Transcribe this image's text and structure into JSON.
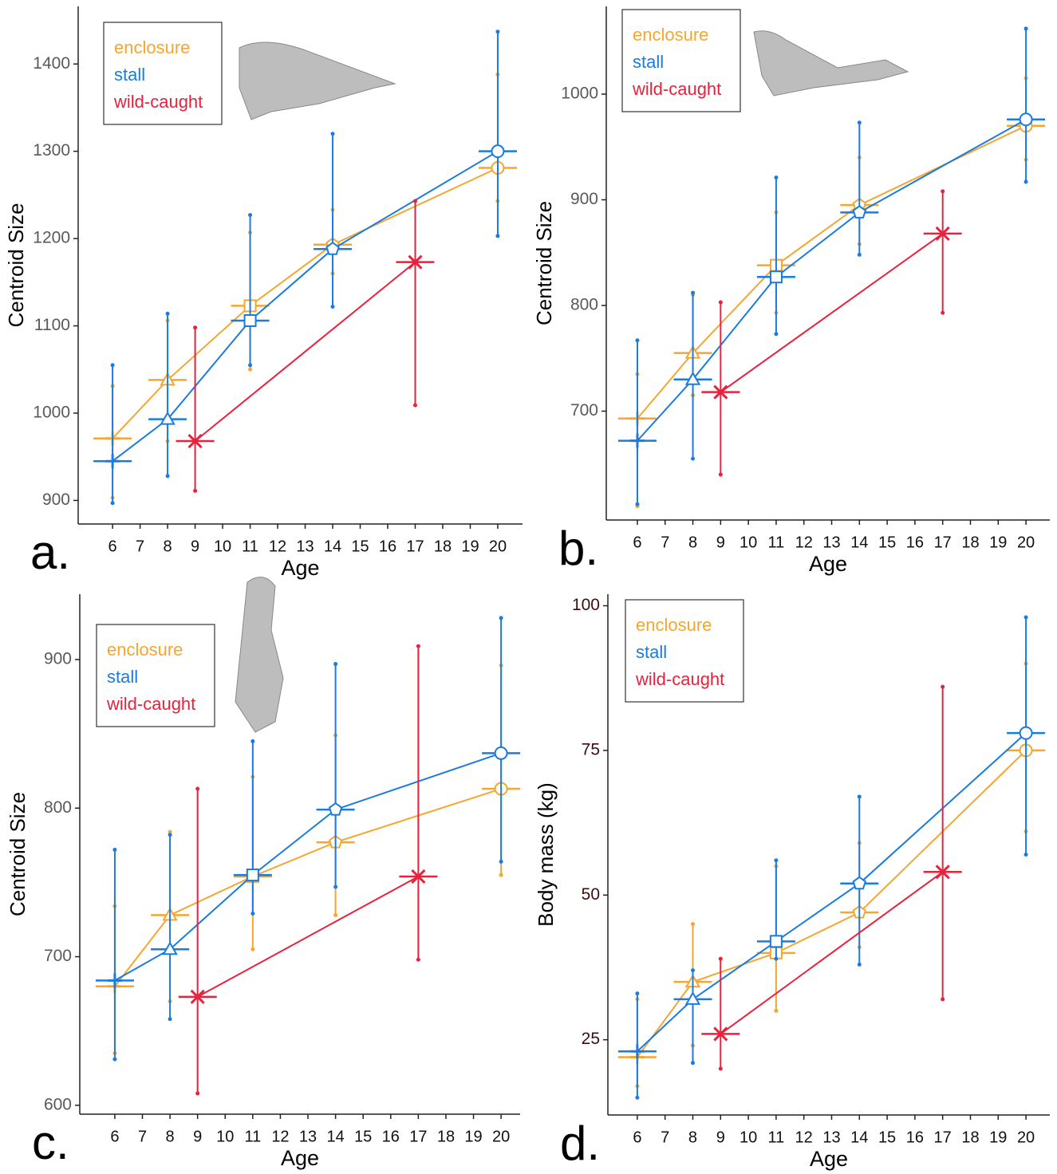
{
  "chart_data": [
    {
      "type": "line",
      "panel_label": "a.",
      "x_label": "Age",
      "y_label": "Centroid Size",
      "ytick_color": "#595959",
      "xlim": [
        4.75,
        20.9
      ],
      "ylim": [
        873,
        1466
      ],
      "xticks": [
        6,
        7,
        8,
        9,
        10,
        11,
        12,
        13,
        14,
        15,
        16,
        17,
        18,
        19,
        20
      ],
      "yticks": [
        900,
        1000,
        1100,
        1200,
        1300,
        1400
      ],
      "series": [
        {
          "name": "enclosure",
          "color": "#f5a631",
          "x": [
            6,
            8,
            11,
            14,
            20
          ],
          "values": [
            971,
            1038,
            1123,
            1193,
            1281
          ],
          "low": [
            903,
            968,
            1050,
            1160,
            1243
          ],
          "high": [
            1031,
            1106,
            1207,
            1233,
            1388
          ],
          "markers": [
            "plus",
            "triangle",
            "square",
            "pentagon",
            "circle"
          ]
        },
        {
          "name": "stall",
          "color": "#1a7be0",
          "x": [
            6,
            8,
            11,
            14,
            20
          ],
          "values": [
            945,
            993,
            1106,
            1188,
            1300
          ],
          "low": [
            897,
            928,
            1055,
            1122,
            1203
          ],
          "high": [
            1055,
            1114,
            1227,
            1320,
            1437
          ],
          "markers": [
            "plus",
            "triangle",
            "square",
            "pentagon",
            "circle"
          ]
        },
        {
          "name": "wild-caught",
          "color": "#e8213c",
          "x": [
            9,
            17
          ],
          "values": [
            968,
            1173
          ],
          "low": [
            911,
            1009
          ],
          "high": [
            1098,
            1243
          ],
          "markers": [
            "x",
            "x"
          ]
        }
      ]
    },
    {
      "type": "line",
      "panel_label": "b.",
      "x_label": "Age",
      "y_label": "Centroid Size",
      "ytick_color": "#595959",
      "xlim": [
        4.88,
        20.86
      ],
      "ylim": [
        597,
        1083
      ],
      "xticks": [
        6,
        7,
        8,
        9,
        10,
        11,
        12,
        13,
        14,
        15,
        16,
        17,
        18,
        19,
        20
      ],
      "yticks": [
        700,
        800,
        900,
        1000
      ],
      "series": [
        {
          "name": "enclosure",
          "color": "#f5a631",
          "x": [
            6,
            8,
            11,
            14,
            20
          ],
          "values": [
            693,
            755,
            838,
            895,
            970
          ],
          "low": [
            610,
            715,
            793,
            858,
            938
          ],
          "high": [
            735,
            810,
            888,
            940,
            1015
          ],
          "markers": [
            "plus",
            "triangle",
            "square",
            "pentagon",
            "circle"
          ]
        },
        {
          "name": "stall",
          "color": "#1a7be0",
          "x": [
            6,
            8,
            11,
            14,
            20
          ],
          "values": [
            672,
            730,
            827,
            888,
            976
          ],
          "low": [
            612,
            655,
            773,
            848,
            917
          ],
          "high": [
            767,
            812,
            921,
            973,
            1062
          ],
          "markers": [
            "plus",
            "triangle",
            "square",
            "pentagon",
            "circle"
          ]
        },
        {
          "name": "wild-caught",
          "color": "#e8213c",
          "x": [
            9,
            17
          ],
          "values": [
            718,
            868
          ],
          "low": [
            640,
            793
          ],
          "high": [
            803,
            908
          ],
          "markers": [
            "x",
            "x"
          ]
        }
      ]
    },
    {
      "type": "line",
      "panel_label": "c.",
      "x_label": "Age",
      "y_label": "Centroid Size",
      "ytick_color": "#595959",
      "xlim": [
        4.73,
        20.69
      ],
      "ylim": [
        594,
        944
      ],
      "xticks": [
        6,
        7,
        8,
        9,
        10,
        11,
        12,
        13,
        14,
        15,
        16,
        17,
        18,
        19,
        20
      ],
      "yticks": [
        600,
        700,
        800,
        900
      ],
      "series": [
        {
          "name": "enclosure",
          "color": "#f5a631",
          "x": [
            6,
            8,
            11,
            14,
            20
          ],
          "values": [
            680,
            728,
            754,
            777,
            813
          ],
          "low": [
            635,
            670,
            705,
            728,
            755
          ],
          "high": [
            734,
            784,
            821,
            849,
            896
          ],
          "markers": [
            "plus",
            "triangle",
            "square",
            "pentagon",
            "circle"
          ]
        },
        {
          "name": "stall",
          "color": "#1a7be0",
          "x": [
            6,
            8,
            11,
            14,
            20
          ],
          "values": [
            684,
            705,
            755,
            799,
            837
          ],
          "low": [
            631,
            658,
            729,
            747,
            764
          ],
          "high": [
            772,
            782,
            845,
            897,
            928
          ],
          "markers": [
            "plus",
            "triangle",
            "square",
            "pentagon",
            "circle"
          ]
        },
        {
          "name": "wild-caught",
          "color": "#e8213c",
          "x": [
            9,
            17
          ],
          "values": [
            673,
            754
          ],
          "low": [
            608,
            698
          ],
          "high": [
            813,
            909
          ],
          "markers": [
            "x",
            "x"
          ]
        }
      ]
    },
    {
      "type": "line",
      "panel_label": "d.",
      "x_label": "Age",
      "y_label": "Body mass (kg)",
      "ytick_color": "#3b0f0f",
      "xlim": [
        4.94,
        20.86
      ],
      "ylim": [
        12,
        102
      ],
      "xticks": [
        6,
        7,
        8,
        9,
        10,
        11,
        12,
        13,
        14,
        15,
        16,
        17,
        18,
        19,
        20
      ],
      "yticks": [
        25,
        50,
        75,
        100
      ],
      "series": [
        {
          "name": "enclosure",
          "color": "#f5a631",
          "x": [
            6,
            8,
            11,
            14,
            20
          ],
          "values": [
            22,
            35,
            40,
            47,
            75
          ],
          "low": [
            17,
            24,
            30,
            41,
            61
          ],
          "high": [
            32,
            45,
            55,
            59,
            90
          ],
          "markers": [
            "plus",
            "triangle",
            "square",
            "pentagon",
            "circle"
          ]
        },
        {
          "name": "stall",
          "color": "#1a7be0",
          "x": [
            6,
            8,
            11,
            14,
            20
          ],
          "values": [
            23,
            32,
            42,
            52,
            78
          ],
          "low": [
            15,
            21,
            39,
            38,
            57
          ],
          "high": [
            33,
            37,
            56,
            67,
            98
          ],
          "markers": [
            "plus",
            "triangle",
            "square",
            "pentagon",
            "circle"
          ]
        },
        {
          "name": "wild-caught",
          "color": "#e8213c",
          "x": [
            9,
            17
          ],
          "values": [
            26,
            54
          ],
          "low": [
            20,
            32
          ],
          "high": [
            39,
            86
          ],
          "markers": [
            "x",
            "x"
          ]
        }
      ]
    }
  ]
}
